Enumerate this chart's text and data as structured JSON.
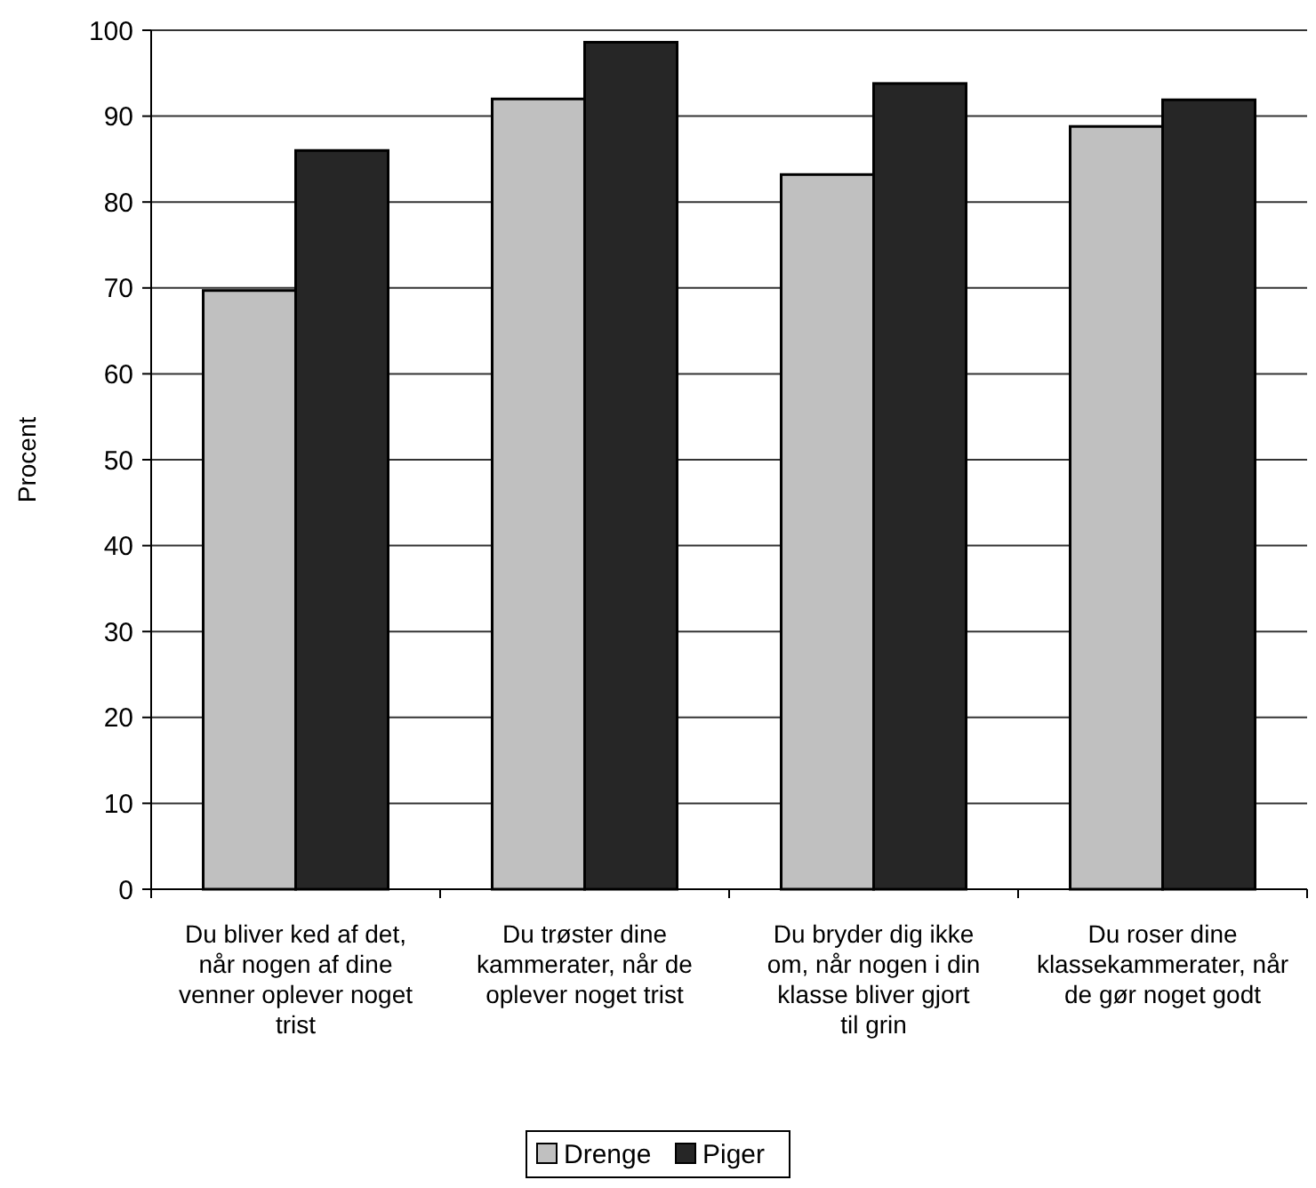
{
  "chart_data": {
    "type": "bar",
    "ylabel": "Procent",
    "categories": [
      "Du bliver ked af det, når nogen af dine venner oplever noget trist",
      "Du trøster dine kammerater, når de oplever noget trist",
      "Du bryder dig ikke om, når nogen i din klasse bliver gjort til grin",
      "Du roser dine klassekammerater, når de gør noget godt"
    ],
    "series": [
      {
        "name": "Drenge",
        "color": "#c0c0c0",
        "values": [
          69.7,
          92.0,
          83.2,
          88.8
        ]
      },
      {
        "name": "Piger",
        "color": "#262626",
        "values": [
          86.0,
          98.6,
          93.8,
          91.9
        ]
      }
    ],
    "ylim": [
      0,
      100
    ],
    "yticks": [
      0,
      10,
      20,
      30,
      40,
      50,
      60,
      70,
      80,
      90,
      100
    ],
    "grid": "y",
    "legend": "bottom"
  }
}
